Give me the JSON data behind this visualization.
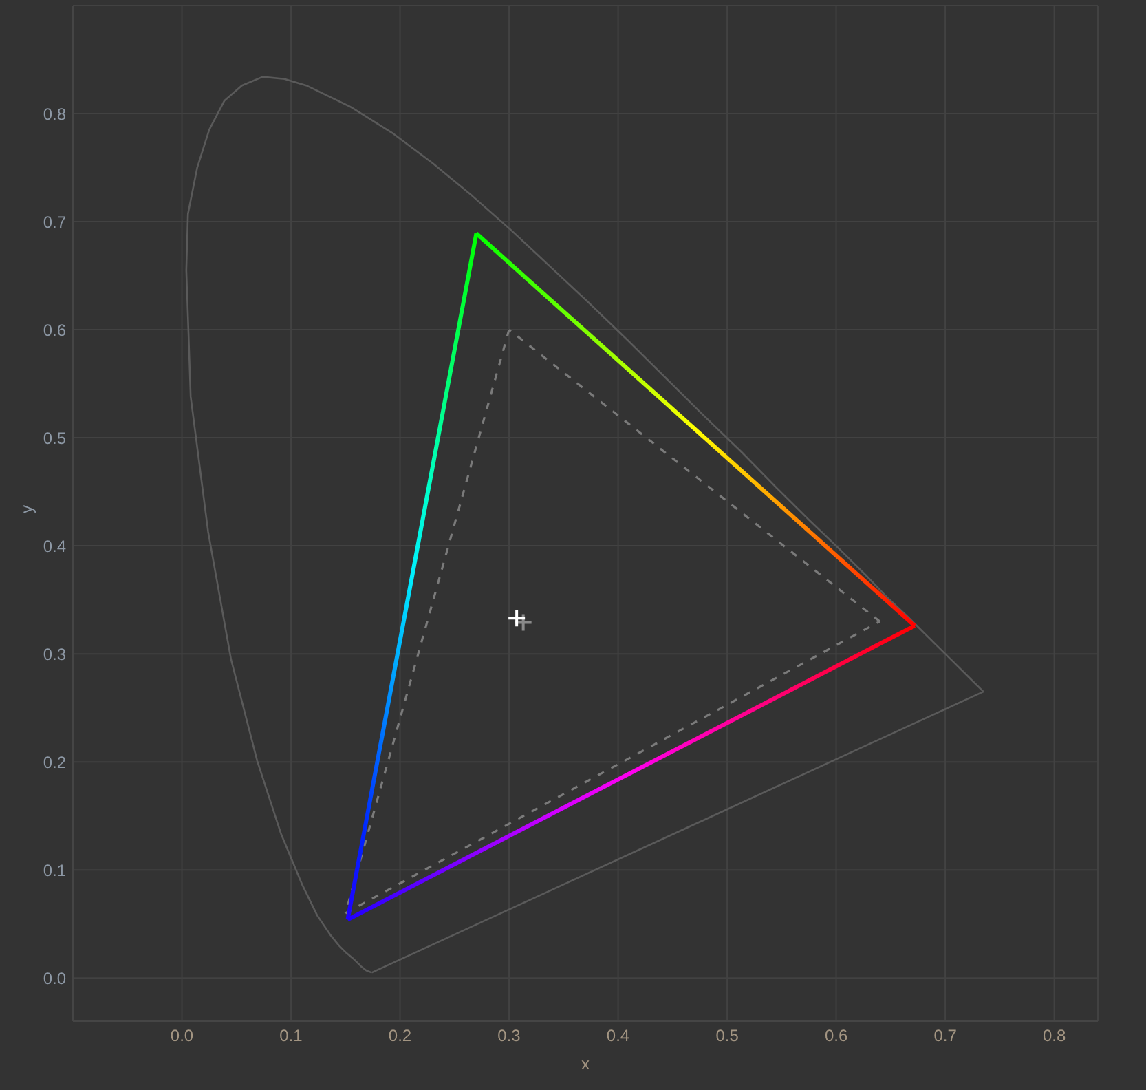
{
  "chart_data": {
    "type": "line",
    "xlabel": "x",
    "ylabel": "y",
    "xlim": [
      -0.1,
      0.84
    ],
    "ylim": [
      -0.04,
      0.9
    ],
    "xticks": [
      {
        "value": 0,
        "label": "0.0"
      },
      0.1,
      0.2,
      0.3,
      0.4,
      0.5,
      0.6,
      0.7,
      0.8
    ],
    "yticks": [
      {
        "value": 0,
        "label": "0.0"
      },
      0.1,
      0.2,
      0.3,
      0.4,
      0.5,
      0.6,
      0.7,
      0.8
    ],
    "grid": true,
    "series": [
      {
        "color": "#5a5a5a",
        "x": [
          0.174,
          0.169,
          0.164,
          0.157,
          0.151,
          0.144,
          0.136,
          0.124,
          0.11,
          0.091,
          0.069,
          0.045,
          0.024,
          0.008,
          0.006,
          0.004,
          0.0055,
          0.014,
          0.025,
          0.039,
          0.055,
          0.074,
          0.094,
          0.114,
          0.155,
          0.193,
          0.23,
          0.266,
          0.302,
          0.337,
          0.373,
          0.409,
          0.444,
          0.479,
          0.513,
          0.545,
          0.575,
          0.603,
          0.627,
          0.648,
          0.666,
          0.692,
          0.708,
          0.719,
          0.726,
          0.73,
          0.733,
          0.735
        ],
        "values": [
          0.005,
          0.007,
          0.011,
          0.018,
          0.023,
          0.03,
          0.04,
          0.058,
          0.087,
          0.133,
          0.201,
          0.295,
          0.413,
          0.538,
          0.597,
          0.655,
          0.707,
          0.75,
          0.785,
          0.812,
          0.826,
          0.834,
          0.832,
          0.826,
          0.806,
          0.782,
          0.754,
          0.724,
          0.692,
          0.659,
          0.625,
          0.59,
          0.555,
          0.52,
          0.487,
          0.454,
          0.424,
          0.397,
          0.373,
          0.351,
          0.334,
          0.308,
          0.292,
          0.281,
          0.274,
          0.27,
          0.267,
          0.265
        ]
      },
      {
        "color": "#5a5a5a",
        "x": [
          0.174,
          0.735
        ],
        "values": [
          0.005,
          0.265
        ]
      },
      {
        "line_style": "dashed",
        "color": "#7a7a7a",
        "x": [
          0.3,
          0.15
        ],
        "values": [
          0.6,
          0.06
        ]
      },
      {
        "line_style": "dashed",
        "color": "#7a7a7a",
        "x": [
          0.15,
          0.64
        ],
        "values": [
          0.06,
          0.33
        ]
      },
      {
        "line_style": "dashed",
        "color": "#7a7a7a",
        "x": [
          0.64,
          0.3
        ],
        "values": [
          0.33,
          0.6
        ]
      },
      {
        "colors": [
          "#ff0000",
          "#00ff00"
        ],
        "x": [
          0.672,
          0.27
        ],
        "values": [
          0.326,
          0.689
        ]
      },
      {
        "colors": [
          "#00ff00",
          "#2000ff"
        ],
        "x": [
          0.27,
          0.152
        ],
        "values": [
          0.689,
          0.054
        ]
      },
      {
        "colors": [
          "#2000ff",
          "#ff0000"
        ],
        "x": [
          0.152,
          0.672
        ],
        "values": [
          0.054,
          0.326
        ]
      },
      {
        "type": "scatter",
        "marker": "cross",
        "color": "#8a8a8a",
        "x": [
          0.313
        ],
        "values": [
          0.329
        ]
      },
      {
        "type": "scatter",
        "marker": "cross",
        "color": "#ffffff",
        "x": [
          0.307
        ],
        "values": [
          0.333
        ]
      }
    ]
  }
}
